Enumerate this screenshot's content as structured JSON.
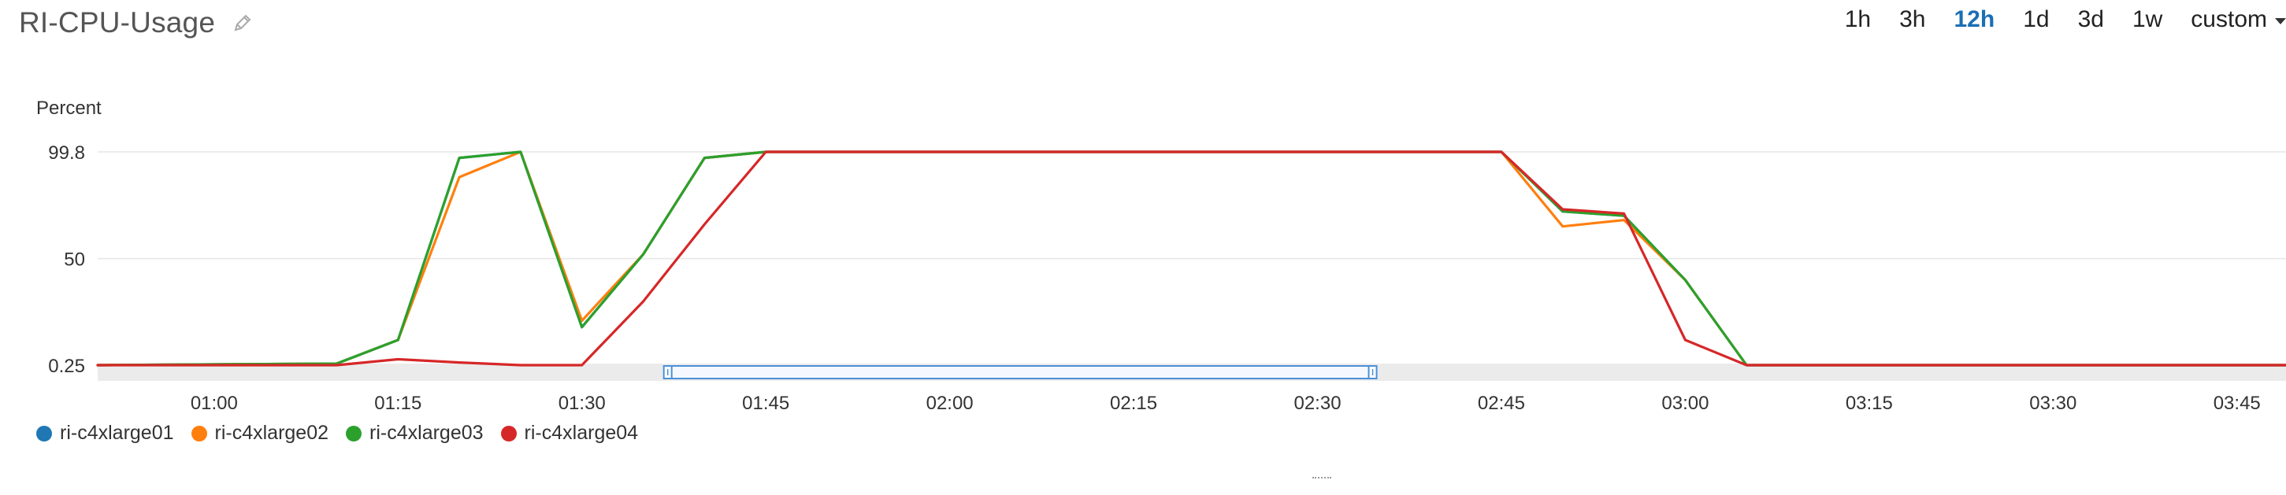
{
  "widget": {
    "title": "RI-CPU-Usage",
    "time_ranges": [
      {
        "label": "1h",
        "active": false
      },
      {
        "label": "3h",
        "active": false
      },
      {
        "label": "12h",
        "active": true
      },
      {
        "label": "1d",
        "active": false
      },
      {
        "label": "3d",
        "active": false
      },
      {
        "label": "1w",
        "active": false
      }
    ],
    "custom_label": "custom",
    "icons": {
      "edit": "pencil-icon",
      "dropdown": "caret-down-icon"
    }
  },
  "chart_data": {
    "type": "line",
    "title": "RI-CPU-Usage",
    "ylabel": "Percent",
    "xlabel": "",
    "y_ticks": [
      "99.8",
      "50",
      "0.25"
    ],
    "y_tick_values": [
      99.8,
      50,
      0.25
    ],
    "ylim": [
      0.25,
      99.8
    ],
    "x_ticks": [
      "01:00",
      "01:15",
      "01:30",
      "01:45",
      "02:00",
      "02:15",
      "02:30",
      "02:45",
      "03:00",
      "03:15",
      "03:30",
      "03:45"
    ],
    "x_tick_minutes": [
      60,
      75,
      90,
      105,
      120,
      135,
      150,
      165,
      180,
      195,
      210,
      225
    ],
    "xlim_minutes": [
      50.5,
      229
    ],
    "brush_range_minutes": [
      97,
      154.5
    ],
    "grid": true,
    "legend_position": "bottom-left",
    "series": [
      {
        "name": "ri-c4xlarge01",
        "color": "#1f77b4",
        "x": [
          50.5,
          70,
          75,
          80,
          85,
          90,
          95,
          100,
          105,
          165,
          170,
          175,
          180,
          185,
          229
        ],
        "y": [
          0.25,
          1,
          12,
          97,
          99.8,
          18,
          52,
          97,
          99.8,
          99.8,
          72,
          70,
          40,
          0.25,
          0.25
        ]
      },
      {
        "name": "ri-c4xlarge02",
        "color": "#ff7f0e",
        "x": [
          50.5,
          70,
          75,
          80,
          85,
          90,
          95,
          100,
          105,
          165,
          170,
          175,
          180,
          185,
          229
        ],
        "y": [
          0.25,
          1,
          12,
          88,
          99.8,
          21,
          52,
          97,
          99.8,
          99.8,
          65,
          68,
          40,
          0.25,
          0.25
        ]
      },
      {
        "name": "ri-c4xlarge03",
        "color": "#2ca02c",
        "x": [
          50.5,
          70,
          75,
          80,
          85,
          90,
          95,
          100,
          105,
          165,
          170,
          175,
          180,
          185,
          229
        ],
        "y": [
          0.25,
          1,
          12,
          97,
          99.8,
          18,
          52,
          97,
          99.8,
          99.8,
          72,
          70,
          40,
          0.25,
          0.25
        ]
      },
      {
        "name": "ri-c4xlarge04",
        "color": "#d62728",
        "x": [
          50.5,
          60,
          70,
          75,
          80,
          85,
          90,
          95,
          100,
          105,
          165,
          170,
          175,
          180,
          185,
          229
        ],
        "y": [
          0.25,
          0.25,
          0.25,
          3,
          1.5,
          0.25,
          0.25,
          30,
          66,
          99.8,
          99.8,
          73,
          71,
          12,
          0.25,
          0.25
        ]
      }
    ]
  }
}
